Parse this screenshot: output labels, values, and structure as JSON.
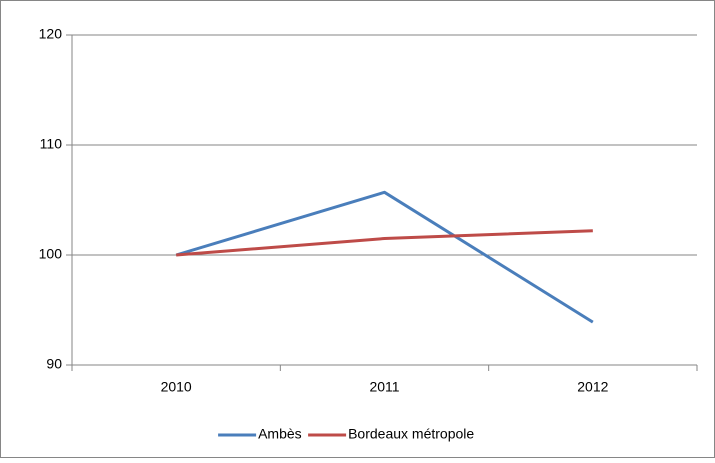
{
  "chart_data": {
    "type": "line",
    "categories": [
      "2010",
      "2011",
      "2012"
    ],
    "series": [
      {
        "name": "Ambès",
        "color": "#4a7ebb",
        "values": [
          100,
          105.7,
          93.9
        ]
      },
      {
        "name": "Bordeaux métropole",
        "color": "#be4b48",
        "values": [
          100,
          101.5,
          102.2
        ]
      }
    ],
    "ylim": [
      90,
      120
    ],
    "yticks": [
      90,
      100,
      110,
      120
    ],
    "grid": true,
    "legend": "bottom"
  }
}
